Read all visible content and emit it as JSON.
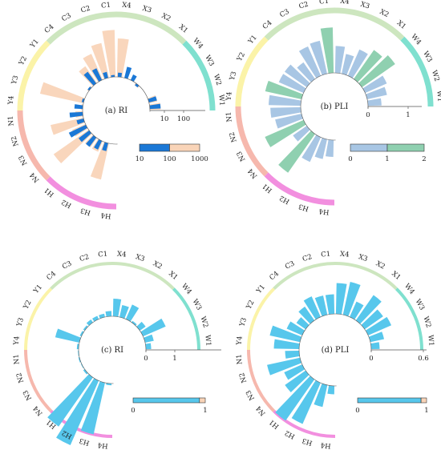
{
  "figure": {
    "station_labels": [
      "W1",
      "W2",
      "W3",
      "W4",
      "X1",
      "X2",
      "X3",
      "X4",
      "C1",
      "C2",
      "C3",
      "C4",
      "Y1",
      "Y2",
      "Y3",
      "Y4",
      "N1",
      "N2",
      "N3",
      "N4",
      "H1",
      "H2",
      "H3",
      "H4"
    ],
    "group_colors": {
      "W": "#7fe0cf",
      "X": "#cde6bf",
      "C": "#cde6bf",
      "Y": "#fbf3a8",
      "N": "#f6b8ad",
      "H": "#f28fdf"
    }
  },
  "chart_data": [
    {
      "type": "bar",
      "subtype": "circular",
      "panel_label": "(a) RI",
      "categories": [
        "W1",
        "W2",
        "W3",
        "W4",
        "X1",
        "X2",
        "X3",
        "X4",
        "C1",
        "C2",
        "C3",
        "C4",
        "Y1",
        "Y2",
        "Y3",
        "Y4",
        "N1",
        "N2",
        "N3",
        "N4",
        "H1",
        "H2",
        "H3",
        "H4"
      ],
      "scale": "log",
      "axis_ticks": [
        "10",
        "100"
      ],
      "series": [
        {
          "values": [
            28,
            22,
            10,
            10,
            8,
            10,
            10,
            400,
            900,
            300,
            150,
            70,
            12,
            10,
            700,
            12,
            20,
            250,
            40,
            600,
            30,
            30,
            350,
            10
          ],
          "color": "#f9d4b8"
        },
        {
          "values": [
            28,
            22,
            10,
            10,
            8,
            18,
            30,
            15,
            12,
            18,
            35,
            40,
            12,
            10,
            12,
            22,
            35,
            20,
            60,
            35,
            30,
            25,
            22,
            10
          ],
          "color": "#1b78d6"
        }
      ],
      "colorbar": {
        "ticks": [
          "10",
          "100",
          "1000"
        ],
        "colors": [
          "#1b78d6",
          "#f9d4b8"
        ]
      }
    },
    {
      "type": "bar",
      "subtype": "circular",
      "panel_label": "(b) PLI",
      "categories": [
        "W1",
        "W2",
        "W3",
        "W4",
        "X1",
        "X2",
        "X3",
        "X4",
        "C1",
        "C2",
        "C3",
        "C4",
        "Y1",
        "Y2",
        "Y3",
        "Y4",
        "N1",
        "N2",
        "N3",
        "N4",
        "H1",
        "H2",
        "H3",
        "H4"
      ],
      "axis_ticks": [
        "0",
        "1"
      ],
      "series": [
        {
          "values": [
            0.4,
            0.6,
            0.7,
            1.2,
            1.05,
            0.85,
            0.6,
            0.8,
            1.35,
            1.0,
            0.95,
            0.6,
            0.8,
            0.8,
            1.1,
            0.95,
            0.9,
            0.8,
            1.25,
            0.5,
            1.4,
            0.8,
            0.6,
            0.5
          ]
        }
      ],
      "value_colors": {
        "low": "#a8c6e4",
        "high": "#8fd0b0"
      },
      "highlight_threshold": 1.0,
      "colorbar": {
        "ticks": [
          "0",
          "1",
          "2"
        ],
        "colors": [
          "#a8c6e4",
          "#8fd0b0"
        ]
      }
    },
    {
      "type": "bar",
      "subtype": "circular",
      "panel_label": "(c) RI",
      "categories": [
        "W1",
        "W2",
        "W3",
        "W4",
        "X1",
        "X2",
        "X3",
        "X4",
        "C1",
        "C2",
        "C3",
        "C4",
        "Y1",
        "Y2",
        "Y3",
        "Y4",
        "N1",
        "N2",
        "N3",
        "N4",
        "H1",
        "H2",
        "H3",
        "H4"
      ],
      "axis_ticks": [
        "0",
        "1"
      ],
      "series": [
        {
          "values": [
            0.15,
            0.25,
            0.7,
            0.2,
            0.05,
            0.45,
            0.35,
            0.5,
            0.15,
            0.1,
            0.1,
            0.1,
            0.05,
            0.05,
            0.7,
            0.05,
            0.02,
            0.03,
            0.02,
            0.05,
            1.7,
            2.0,
            1.5,
            0.05
          ],
          "color": "#57c7ec"
        }
      ],
      "colorbar": {
        "ticks": [
          "0",
          "1"
        ],
        "colors": [
          "#57c7ec",
          "#f9d4b8"
        ]
      }
    },
    {
      "type": "bar",
      "subtype": "circular",
      "panel_label": "(d) PLI",
      "categories": [
        "W1",
        "W2",
        "W3",
        "W4",
        "X1",
        "X2",
        "X3",
        "X4",
        "C1",
        "C2",
        "C3",
        "C4",
        "Y1",
        "Y2",
        "Y3",
        "Y4",
        "N1",
        "N2",
        "N3",
        "N4",
        "H1",
        "H2",
        "H3",
        "H4"
      ],
      "axis_ticks": [
        "0",
        "0.6"
      ],
      "series": [
        {
          "values": [
            0.15,
            0.25,
            0.45,
            0.4,
            0.55,
            0.3,
            0.6,
            0.55,
            0.35,
            0.35,
            0.4,
            0.3,
            0.2,
            0.3,
            0.55,
            0.45,
            0.25,
            0.6,
            0.35,
            0.45,
            0.9,
            0.8,
            0.4,
            0.15
          ],
          "color": "#57c7ec"
        }
      ],
      "colorbar": {
        "ticks": [
          "0",
          "1"
        ],
        "colors": [
          "#57c7ec",
          "#f9d4b8"
        ]
      }
    }
  ]
}
